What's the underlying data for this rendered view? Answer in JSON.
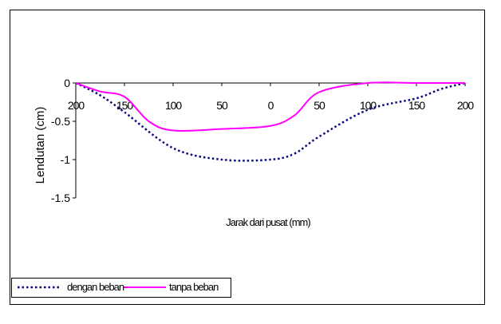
{
  "chart_data": {
    "type": "line",
    "xlabel": "Jarak dari pusat (mm)",
    "ylabel": "Lendutan (cm)",
    "ylim": [
      -1.5,
      0
    ],
    "yticks": [
      0,
      -0.5,
      -1,
      -1.5
    ],
    "ytick_labels": [
      "0",
      "-0.5",
      "-1",
      "-1.5"
    ],
    "xtick_labels": [
      "200",
      "150",
      "100",
      "50",
      "0",
      "50",
      "100",
      "150",
      "200"
    ],
    "grid": false,
    "legend_position": "bottom-left",
    "series": [
      {
        "name": "dengan beban",
        "color": "#0a0a80",
        "style": "dotted",
        "x": [
          0,
          0.5,
          1,
          2,
          3,
          4,
          4.5,
          5,
          6,
          7,
          7.5,
          8
        ],
        "y": [
          0,
          -0.16,
          -0.38,
          -0.85,
          -1.0,
          -1.0,
          -0.92,
          -0.7,
          -0.35,
          -0.2,
          -0.08,
          0
        ]
      },
      {
        "name": "tanpa beban",
        "color": "#ff00ff",
        "style": "solid",
        "x": [
          0,
          0.5,
          1,
          1.5,
          2,
          3,
          4,
          4.5,
          5,
          6,
          7,
          8
        ],
        "y": [
          0,
          -0.11,
          -0.18,
          -0.5,
          -0.62,
          -0.6,
          -0.56,
          -0.42,
          -0.12,
          0,
          0,
          0
        ]
      }
    ]
  }
}
